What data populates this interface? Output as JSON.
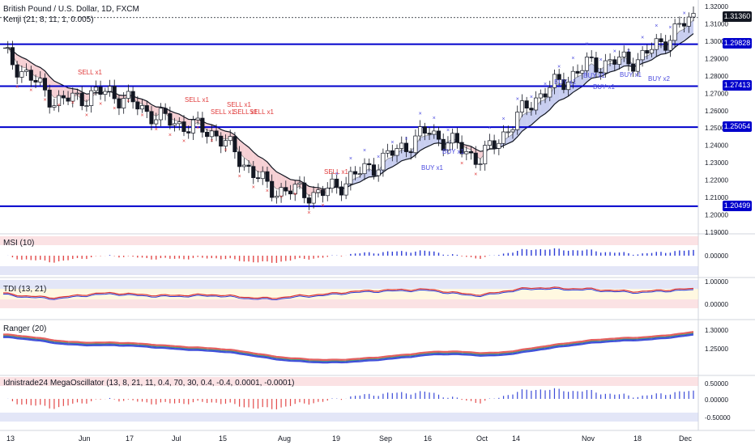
{
  "header": {
    "symbol_title": "British Pound / U.S. Dollar, 1D, FXCM",
    "indicator_label": "Kenji (21, 8, 11, 1, 0.005)"
  },
  "panes": {
    "msi": {
      "label": "MSI (10)",
      "zero": "0.00000"
    },
    "tdi": {
      "label": "TDI (13, 21)",
      "top": "1.00000",
      "zero": "0.00000"
    },
    "ranger": {
      "label": "Ranger (20)",
      "upper": "1.30000",
      "lower": "1.25000"
    },
    "mega": {
      "label": "Idnistrade24 MegaOscillator (13, 8, 21, 11, 0.4, 70, 30, 0.4, -0.4, 0.0001, -0.0001)",
      "upper": "0.50000",
      "zero": "0.00000",
      "lower": "-0.50000"
    }
  },
  "price_axis": {
    "ticks": [
      "1.32000",
      "1.31000",
      "1.30000",
      "1.29000",
      "1.28000",
      "1.27000",
      "1.26000",
      "1.25000",
      "1.24000",
      "1.23000",
      "1.22000",
      "1.21000",
      "1.20000",
      "1.19000"
    ]
  },
  "level_tags": [
    "1.31360",
    "1.29828",
    "1.27413",
    "1.25054",
    "1.20499"
  ],
  "time_axis": [
    "13",
    "Jun",
    "17",
    "Jul",
    "15",
    "Aug",
    "19",
    "Sep",
    "16",
    "Oct",
    "14",
    "Nov",
    "18",
    "Dec"
  ],
  "signals": {
    "sell": [
      "SELL x1",
      "SELL x1",
      "SELL x1",
      "SELL x1",
      "SELL x1",
      "SELL x1",
      "SELL x1"
    ],
    "buy": [
      "BUY x1",
      "BUY x1",
      "BUY x1",
      "BUY x1",
      "BUY x1",
      "BUY x1",
      "BUY x2"
    ]
  },
  "colors": {
    "level": "#0000cc",
    "bear_band": "#f6d0d4",
    "bull_band": "#c8cef0",
    "buy_mark": "#4a4adf",
    "sell_mark": "#e03a3a",
    "candle": "#131722"
  },
  "chart_data": {
    "type": "candlestick",
    "title": "British Pound / U.S. Dollar, 1D, FXCM",
    "ylim": [
      1.19,
      1.32
    ],
    "levels": [
      1.29828,
      1.27413,
      1.25054,
      1.20499
    ],
    "last_price": 1.3136,
    "x": [
      "May 13",
      "Jun 3",
      "Jun 17",
      "Jul 1",
      "Jul 15",
      "Aug 1",
      "Aug 19",
      "Sep 2",
      "Sep 16",
      "Oct 1",
      "Oct 14",
      "Nov 1",
      "Nov 18",
      "Dec 2"
    ],
    "close": [
      1.293,
      1.265,
      1.271,
      1.255,
      1.247,
      1.215,
      1.212,
      1.229,
      1.248,
      1.232,
      1.267,
      1.286,
      1.29,
      1.314
    ]
  }
}
